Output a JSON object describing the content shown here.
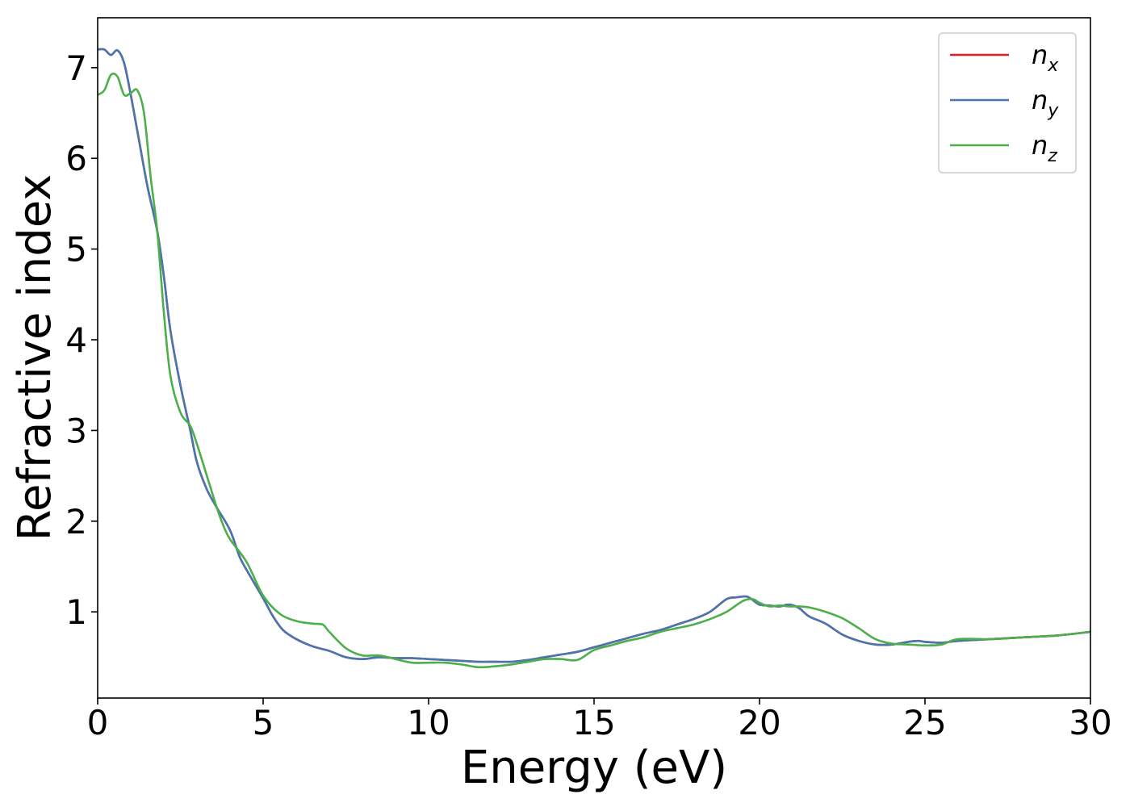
{
  "chart_data": {
    "type": "line",
    "xlabel": "Energy (eV)",
    "ylabel": "Refractive index",
    "xlim": [
      0,
      30
    ],
    "ylim": [
      0.05,
      7.55
    ],
    "xticks": [
      0,
      5,
      10,
      15,
      20,
      25,
      30
    ],
    "xtick_labels": [
      "0",
      "5",
      "10",
      "15",
      "20",
      "25",
      "30"
    ],
    "yticks": [
      1,
      2,
      3,
      4,
      5,
      6,
      7
    ],
    "ytick_labels": [
      "1",
      "2",
      "3",
      "4",
      "5",
      "6",
      "7"
    ],
    "grid": false,
    "legend_position": "top-right",
    "series": [
      {
        "name": "n_x",
        "base": "n",
        "sub": "x",
        "color": "#e41a1c",
        "x": [
          0,
          0.2,
          0.4,
          0.6,
          0.8,
          1.0,
          1.2,
          1.5,
          1.8,
          2.0,
          2.2,
          2.5,
          2.8,
          3.0,
          3.3,
          3.6,
          4.0,
          4.3,
          4.6,
          5.0,
          5.3,
          5.6,
          6.0,
          6.5,
          7.0,
          7.5,
          8.0,
          8.5,
          9.0,
          9.5,
          10.0,
          10.5,
          11.0,
          11.5,
          12.0,
          12.5,
          13.0,
          13.5,
          14.0,
          14.5,
          15.0,
          15.5,
          16.0,
          16.5,
          17.0,
          17.5,
          18.0,
          18.5,
          19.0,
          19.3,
          19.6,
          19.8,
          20.0,
          20.3,
          20.6,
          20.9,
          21.2,
          21.5,
          22.0,
          22.5,
          23.0,
          23.5,
          24.0,
          24.5,
          24.8,
          25.0,
          25.5,
          26.0,
          27.0,
          28.0,
          29.0,
          30.0
        ],
        "values": [
          7.2,
          7.2,
          7.14,
          7.19,
          7.05,
          6.7,
          6.3,
          5.7,
          5.2,
          4.7,
          4.1,
          3.5,
          3.0,
          2.65,
          2.35,
          2.15,
          1.9,
          1.6,
          1.4,
          1.15,
          0.95,
          0.8,
          0.7,
          0.62,
          0.57,
          0.5,
          0.48,
          0.5,
          0.49,
          0.49,
          0.48,
          0.47,
          0.46,
          0.45,
          0.45,
          0.45,
          0.47,
          0.5,
          0.53,
          0.56,
          0.61,
          0.66,
          0.71,
          0.76,
          0.8,
          0.86,
          0.92,
          1.0,
          1.14,
          1.16,
          1.17,
          1.13,
          1.08,
          1.07,
          1.06,
          1.08,
          1.04,
          0.95,
          0.87,
          0.75,
          0.68,
          0.64,
          0.64,
          0.67,
          0.68,
          0.67,
          0.66,
          0.68,
          0.7,
          0.72,
          0.74,
          0.78
        ]
      },
      {
        "name": "n_y",
        "base": "n",
        "sub": "y",
        "color": "#4876b0",
        "x": [
          0,
          0.2,
          0.4,
          0.6,
          0.8,
          1.0,
          1.2,
          1.5,
          1.8,
          2.0,
          2.2,
          2.5,
          2.8,
          3.0,
          3.3,
          3.6,
          4.0,
          4.3,
          4.6,
          5.0,
          5.3,
          5.6,
          6.0,
          6.5,
          7.0,
          7.5,
          8.0,
          8.5,
          9.0,
          9.5,
          10.0,
          10.5,
          11.0,
          11.5,
          12.0,
          12.5,
          13.0,
          13.5,
          14.0,
          14.5,
          15.0,
          15.5,
          16.0,
          16.5,
          17.0,
          17.5,
          18.0,
          18.5,
          19.0,
          19.3,
          19.6,
          19.8,
          20.0,
          20.3,
          20.6,
          20.9,
          21.2,
          21.5,
          22.0,
          22.5,
          23.0,
          23.5,
          24.0,
          24.5,
          24.8,
          25.0,
          25.5,
          26.0,
          27.0,
          28.0,
          29.0,
          30.0
        ],
        "values": [
          7.2,
          7.2,
          7.14,
          7.19,
          7.05,
          6.7,
          6.3,
          5.7,
          5.2,
          4.7,
          4.1,
          3.5,
          3.0,
          2.65,
          2.35,
          2.15,
          1.9,
          1.6,
          1.4,
          1.15,
          0.95,
          0.8,
          0.7,
          0.62,
          0.57,
          0.5,
          0.48,
          0.5,
          0.49,
          0.49,
          0.48,
          0.47,
          0.46,
          0.45,
          0.45,
          0.45,
          0.47,
          0.5,
          0.53,
          0.56,
          0.61,
          0.66,
          0.71,
          0.76,
          0.8,
          0.86,
          0.92,
          1.0,
          1.14,
          1.16,
          1.17,
          1.13,
          1.08,
          1.07,
          1.06,
          1.08,
          1.04,
          0.95,
          0.87,
          0.75,
          0.68,
          0.64,
          0.64,
          0.67,
          0.68,
          0.67,
          0.66,
          0.68,
          0.7,
          0.72,
          0.74,
          0.78
        ]
      },
      {
        "name": "n_z",
        "base": "n",
        "sub": "z",
        "color": "#4daf4a",
        "x": [
          0,
          0.2,
          0.4,
          0.6,
          0.8,
          1.0,
          1.2,
          1.4,
          1.6,
          1.8,
          2.0,
          2.2,
          2.5,
          2.8,
          3.0,
          3.3,
          3.6,
          3.8,
          4.0,
          4.5,
          5.0,
          5.5,
          6.0,
          6.5,
          6.8,
          7.0,
          7.5,
          8.0,
          8.5,
          9.0,
          9.5,
          10.0,
          10.5,
          11.0,
          11.5,
          12.0,
          12.5,
          13.0,
          13.5,
          14.0,
          14.5,
          15.0,
          15.5,
          16.0,
          16.5,
          17.0,
          17.5,
          18.0,
          18.5,
          19.0,
          19.5,
          19.8,
          20.0,
          20.3,
          20.6,
          20.9,
          21.2,
          21.5,
          22.0,
          22.5,
          23.0,
          23.5,
          24.0,
          24.5,
          25.0,
          25.5,
          26.0,
          27.0,
          28.0,
          29.0,
          30.0
        ],
        "values": [
          6.7,
          6.75,
          6.92,
          6.9,
          6.7,
          6.72,
          6.75,
          6.5,
          5.8,
          5.2,
          4.3,
          3.6,
          3.2,
          3.05,
          2.85,
          2.5,
          2.15,
          1.95,
          1.8,
          1.55,
          1.18,
          0.98,
          0.9,
          0.87,
          0.86,
          0.78,
          0.6,
          0.52,
          0.52,
          0.48,
          0.44,
          0.44,
          0.44,
          0.42,
          0.39,
          0.4,
          0.42,
          0.45,
          0.48,
          0.48,
          0.47,
          0.58,
          0.63,
          0.68,
          0.72,
          0.78,
          0.82,
          0.86,
          0.92,
          1.0,
          1.12,
          1.14,
          1.1,
          1.06,
          1.07,
          1.06,
          1.06,
          1.05,
          1.0,
          0.93,
          0.82,
          0.7,
          0.65,
          0.64,
          0.63,
          0.64,
          0.7,
          0.7,
          0.72,
          0.74,
          0.78
        ]
      }
    ]
  }
}
